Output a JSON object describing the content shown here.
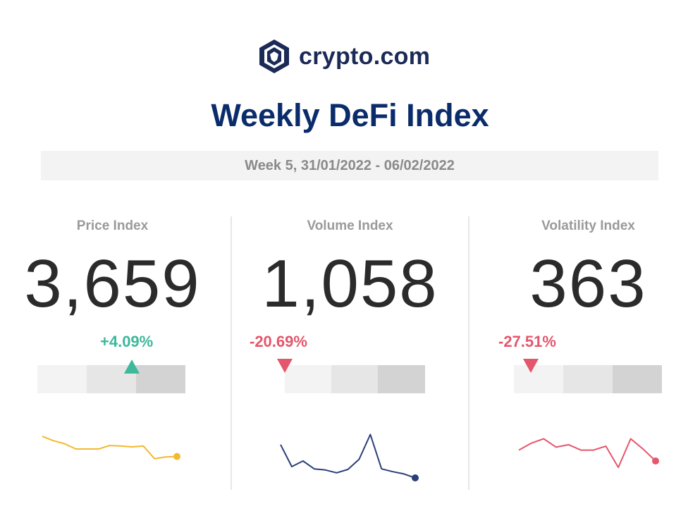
{
  "brand": {
    "name": "crypto.com",
    "logo_icon": "crypto-lion-shield-icon",
    "color": "#1b2a57"
  },
  "title": "Weekly DeFi Index",
  "week_range": "Week 5, 31/01/2022 - 06/02/2022",
  "colors": {
    "title": "#0b2c6b",
    "up": "#3cb89b",
    "down": "#e4566b",
    "price_spark": "#f3b930",
    "volume_spark": "#2b3f78",
    "volatility_spark": "#e4566b"
  },
  "indices": [
    {
      "label": "Price Index",
      "value": "3,659",
      "change": "+4.09%",
      "direction": "up",
      "meter_level": 0.63,
      "spark_color": "#f3b930",
      "spark": [
        0.66,
        0.56,
        0.49,
        0.37,
        0.37,
        0.37,
        0.45,
        0.44,
        0.42,
        0.44,
        0.15,
        0.19,
        0.2
      ]
    },
    {
      "label": "Volume Index",
      "value": "1,058",
      "change": "-20.69%",
      "direction": "down",
      "meter_level": 0.02,
      "spark_color": "#2b3f78",
      "spark": [
        0.59,
        0.2,
        0.3,
        0.16,
        0.14,
        0.09,
        0.15,
        0.33,
        0.77,
        0.16,
        0.11,
        0.07,
        0.0
      ]
    },
    {
      "label": "Volatility Index",
      "value": "363",
      "change": "-27.51%",
      "direction": "down",
      "meter_level": 0.06,
      "spark_color": "#e4566b",
      "spark": [
        0.42,
        0.56,
        0.65,
        0.48,
        0.53,
        0.42,
        0.42,
        0.5,
        0.07,
        0.65,
        0.44,
        0.2
      ]
    }
  ]
}
